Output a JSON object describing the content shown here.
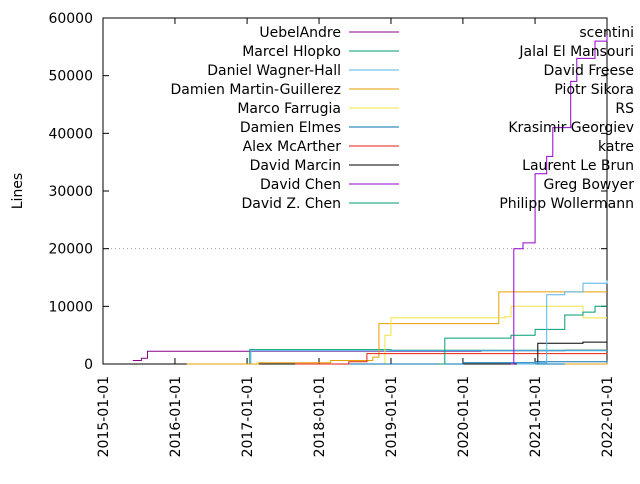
{
  "chart_data": {
    "type": "line",
    "ylabel": "Lines",
    "xlabel": "",
    "ylim": [
      0,
      60000
    ],
    "xlim": [
      "2015-01-01",
      "2022-01-01"
    ],
    "yticks": [
      0,
      10000,
      20000,
      30000,
      40000,
      50000,
      60000
    ],
    "ytick_labels": [
      "0",
      "10000",
      "20000",
      "30000",
      "40000",
      "50000",
      "60000"
    ],
    "xticks": [
      "2015-01-01",
      "2016-01-01",
      "2017-01-01",
      "2018-01-01",
      "2019-01-01",
      "2020-01-01",
      "2021-01-01",
      "2022-01-01"
    ],
    "xtick_labels": [
      "2015-01-01",
      "2016-01-01",
      "2017-01-01",
      "2018-01-01",
      "2019-01-01",
      "2020-01-01",
      "2021-01-01",
      "2022-01-01"
    ],
    "grid": "horizontal dotted at 20000",
    "legend_placement": "top, two columns",
    "series": [
      {
        "name": "UebelAndre",
        "color": "#8b008b",
        "points": [
          [
            "2015-06-01",
            600
          ],
          [
            "2015-07-15",
            1000
          ],
          [
            "2015-08-15",
            2200
          ],
          [
            "2019-01-01",
            2200
          ],
          [
            "2020-04-01",
            2300
          ],
          [
            "2020-11-01",
            2300
          ],
          [
            "2021-06-01",
            2400
          ],
          [
            "2022-01-01",
            2400
          ]
        ]
      },
      {
        "name": "Marcel Hlopko",
        "color": "#009e73",
        "points": [
          [
            "2017-01-10",
            0
          ],
          [
            "2017-01-15",
            2500
          ],
          [
            "2018-06-01",
            2500
          ],
          [
            "2019-01-01",
            2400
          ],
          [
            "2022-01-01",
            2400
          ]
        ]
      },
      {
        "name": "Daniel Wagner-Hall",
        "color": "#56b4e9",
        "points": [
          [
            "2017-01-15",
            0
          ],
          [
            "2017-01-20",
            2300
          ],
          [
            "2020-11-01",
            2300
          ],
          [
            "2022-01-01",
            2300
          ]
        ]
      },
      {
        "name": "Damien Martin-Guillerez",
        "color": "#e69f00",
        "points": [
          [
            "2016-03-01",
            0
          ],
          [
            "2017-03-01",
            200
          ],
          [
            "2018-03-01",
            600
          ],
          [
            "2018-10-01",
            1200
          ],
          [
            "2018-11-01",
            7000
          ],
          [
            "2020-06-01",
            7000
          ],
          [
            "2020-07-01",
            12500
          ],
          [
            "2022-01-01",
            12500
          ]
        ]
      },
      {
        "name": "Marco Farrugia",
        "color": "#f0e442",
        "points": [
          [
            "2018-11-01",
            0
          ],
          [
            "2018-12-01",
            5000
          ],
          [
            "2019-01-01",
            8000
          ],
          [
            "2020-08-01",
            8200
          ],
          [
            "2020-09-01",
            10000
          ],
          [
            "2021-06-01",
            10000
          ],
          [
            "2021-09-01",
            8000
          ],
          [
            "2022-01-01",
            8000
          ]
        ]
      },
      {
        "name": "Damien Elmes",
        "color": "#0072b2",
        "points": [
          [
            "2018-01-01",
            0
          ],
          [
            "2020-01-01",
            200
          ],
          [
            "2021-01-01",
            400
          ],
          [
            "2022-01-01",
            600
          ]
        ]
      },
      {
        "name": "Alex McArther",
        "color": "#e51e10",
        "points": [
          [
            "2017-09-01",
            0
          ],
          [
            "2018-06-01",
            400
          ],
          [
            "2018-09-01",
            1800
          ],
          [
            "2022-01-01",
            1900
          ]
        ]
      },
      {
        "name": "David Marcin",
        "color": "#000000",
        "points": [
          [
            "2021-01-01",
            0
          ],
          [
            "2021-01-15",
            3600
          ],
          [
            "2021-09-01",
            3800
          ],
          [
            "2022-01-01",
            3800
          ]
        ]
      },
      {
        "name": "David Chen",
        "color": "#9400d3",
        "points": [
          [
            "2020-09-01",
            0
          ],
          [
            "2020-09-15",
            20000
          ],
          [
            "2020-11-01",
            21000
          ],
          [
            "2021-01-01",
            33000
          ],
          [
            "2021-03-01",
            36000
          ],
          [
            "2021-04-01",
            41000
          ],
          [
            "2021-07-01",
            49000
          ],
          [
            "2021-08-01",
            53000
          ],
          [
            "2021-10-01",
            53000
          ],
          [
            "2021-11-01",
            56000
          ],
          [
            "2022-01-01",
            57000
          ]
        ]
      },
      {
        "name": "David Z. Chen",
        "color": "#009e73",
        "points": [
          [
            "2019-09-01",
            0
          ],
          [
            "2019-10-01",
            4500
          ],
          [
            "2020-06-01",
            4500
          ],
          [
            "2020-09-01",
            5000
          ],
          [
            "2021-01-01",
            6000
          ],
          [
            "2021-06-01",
            8500
          ],
          [
            "2021-09-01",
            9000
          ],
          [
            "2021-11-01",
            10000
          ],
          [
            "2022-01-01",
            10000
          ]
        ]
      },
      {
        "name": "scentini",
        "color": "#56b4e9",
        "points": [
          [
            "2020-10-01",
            0
          ],
          [
            "2021-01-01",
            200
          ],
          [
            "2021-03-01",
            12000
          ],
          [
            "2021-06-01",
            12500
          ],
          [
            "2021-09-01",
            14000
          ],
          [
            "2022-01-01",
            14500
          ]
        ]
      },
      {
        "name": "Jalal El Mansouri",
        "color": "#e69f00",
        "points": [
          [
            "2021-01-01",
            0
          ],
          [
            "2022-01-01",
            300
          ]
        ]
      },
      {
        "name": "David Freese",
        "color": "#f0e442",
        "points": [
          [
            "2021-03-01",
            0
          ],
          [
            "2022-01-01",
            300
          ]
        ]
      },
      {
        "name": "Piotr Sikora",
        "color": "#0072b2",
        "points": [
          [
            "2021-01-01",
            0
          ],
          [
            "2022-01-01",
            300
          ]
        ]
      },
      {
        "name": "RS",
        "color": "#e51e10",
        "points": [
          [
            "2021-06-01",
            0
          ],
          [
            "2022-01-01",
            200
          ]
        ]
      },
      {
        "name": "Krasimir Georgiev",
        "color": "#000000",
        "points": [
          [
            "2021-06-01",
            0
          ],
          [
            "2022-01-01",
            100
          ]
        ]
      },
      {
        "name": "katre",
        "color": "#8b008b",
        "points": [
          [
            "2021-06-01",
            0
          ],
          [
            "2022-01-01",
            100
          ]
        ]
      },
      {
        "name": "Laurent Le Brun",
        "color": "#009e73",
        "points": [
          [
            "2021-06-01",
            0
          ],
          [
            "2022-01-01",
            100
          ]
        ]
      },
      {
        "name": "Greg Bowyer",
        "color": "#56b4e9",
        "points": [
          [
            "2021-06-01",
            0
          ],
          [
            "2022-01-01",
            100
          ]
        ]
      },
      {
        "name": "Philipp Wollermann",
        "color": "#e69f00",
        "points": [
          [
            "2021-06-01",
            0
          ],
          [
            "2022-01-01",
            100
          ]
        ]
      }
    ]
  }
}
